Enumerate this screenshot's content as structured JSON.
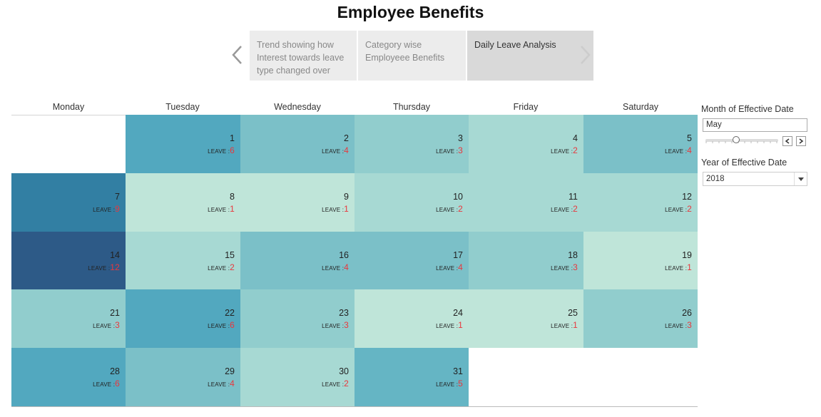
{
  "title": "Employee Benefits",
  "story": {
    "points": [
      {
        "label": "Trend showing how Interest towards leave type changed over",
        "active": false
      },
      {
        "label": "Category wise Employeee Benefits",
        "active": false
      },
      {
        "label": "Daily Leave Analysis",
        "active": true
      }
    ]
  },
  "calendar": {
    "days": [
      "Monday",
      "Tuesday",
      "Wednesday",
      "Thursday",
      "Friday",
      "Saturday"
    ],
    "leave_label": "LEAVE :",
    "cells": [
      {
        "day": "1",
        "leave": "6",
        "color": "#52a8bf"
      },
      {
        "day": "2",
        "leave": "4",
        "color": "#7bc0c8"
      },
      {
        "day": "3",
        "leave": "3",
        "color": "#91cdcd"
      },
      {
        "day": "4",
        "leave": "2",
        "color": "#a7d9d3"
      },
      {
        "day": "5",
        "leave": "4",
        "color": "#7bc0c8"
      },
      {
        "day": "7",
        "leave": "9",
        "color": "#327fa3"
      },
      {
        "day": "8",
        "leave": "1",
        "color": "#bfe5d9"
      },
      {
        "day": "9",
        "leave": "1",
        "color": "#bfe5d9"
      },
      {
        "day": "10",
        "leave": "2",
        "color": "#a7d9d3"
      },
      {
        "day": "11",
        "leave": "2",
        "color": "#a7d9d3"
      },
      {
        "day": "12",
        "leave": "2",
        "color": "#a7d9d3"
      },
      {
        "day": "14",
        "leave": "12",
        "color": "#2d5a87"
      },
      {
        "day": "15",
        "leave": "2",
        "color": "#a7d9d3"
      },
      {
        "day": "16",
        "leave": "4",
        "color": "#7bc0c8"
      },
      {
        "day": "17",
        "leave": "4",
        "color": "#7bc0c8"
      },
      {
        "day": "18",
        "leave": "3",
        "color": "#91cdcd"
      },
      {
        "day": "19",
        "leave": "1",
        "color": "#bfe5d9"
      },
      {
        "day": "21",
        "leave": "3",
        "color": "#91cdcd"
      },
      {
        "day": "22",
        "leave": "6",
        "color": "#52a8bf"
      },
      {
        "day": "23",
        "leave": "3",
        "color": "#91cdcd"
      },
      {
        "day": "24",
        "leave": "1",
        "color": "#bfe5d9"
      },
      {
        "day": "25",
        "leave": "1",
        "color": "#bfe5d9"
      },
      {
        "day": "26",
        "leave": "3",
        "color": "#91cdcd"
      },
      {
        "day": "28",
        "leave": "6",
        "color": "#52a8bf"
      },
      {
        "day": "29",
        "leave": "4",
        "color": "#7bc0c8"
      },
      {
        "day": "30",
        "leave": "2",
        "color": "#a7d9d3"
      },
      {
        "day": "31",
        "leave": "5",
        "color": "#65b5c4"
      }
    ]
  },
  "filters": {
    "month": {
      "label": "Month of Effective Date",
      "value": "May"
    },
    "year": {
      "label": "Year of Effective Date",
      "value": "2018"
    }
  },
  "colors": {
    "leave_value": "#e8383d",
    "active_tab": "#d9d9d9",
    "inactive_tab": "#ececec"
  }
}
